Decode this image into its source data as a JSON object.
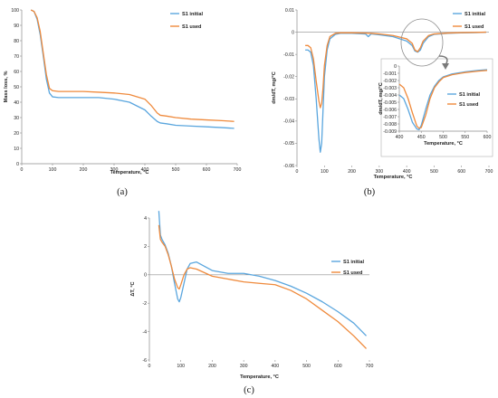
{
  "colors": {
    "initial": "#5aa6de",
    "used": "#ef8a3c",
    "axis": "#8c8c8c",
    "text": "#222222"
  },
  "panel_labels": [
    "(a)",
    "(b)",
    "(c)"
  ],
  "chart_data": [
    {
      "id": "a",
      "type": "line",
      "title": "",
      "xlabel": "Temperature, °C",
      "ylabel": "Mass loss, %",
      "xlim": [
        0,
        700
      ],
      "ylim": [
        0,
        100
      ],
      "xticks": [
        "0",
        "100",
        "200",
        "300",
        "400",
        "500",
        "600",
        "700"
      ],
      "yticks": [
        "0",
        "10",
        "20",
        "30",
        "40",
        "50",
        "60",
        "70",
        "80",
        "90",
        "100"
      ],
      "grid": false,
      "legend": "top-right",
      "series": [
        {
          "name": "S1 initial",
          "color": "#5aa6de",
          "x": [
            30,
            40,
            50,
            60,
            70,
            80,
            90,
            100,
            120,
            150,
            200,
            250,
            300,
            350,
            400,
            420,
            440,
            450,
            470,
            500,
            550,
            600,
            650,
            690
          ],
          "y": [
            100,
            99,
            94,
            84,
            70,
            55,
            46,
            43.5,
            43,
            43,
            43,
            43,
            42,
            40,
            35,
            31,
            27.5,
            26.5,
            26,
            25,
            24.5,
            24,
            23.5,
            23
          ]
        },
        {
          "name": "S1 used",
          "color": "#ef8a3c",
          "x": [
            30,
            40,
            50,
            60,
            70,
            80,
            90,
            100,
            120,
            150,
            200,
            250,
            300,
            350,
            400,
            420,
            440,
            450,
            470,
            500,
            550,
            600,
            650,
            690
          ],
          "y": [
            100,
            99,
            95,
            86,
            72,
            58,
            49,
            47.5,
            47,
            47,
            47,
            46.5,
            46,
            45,
            42,
            38,
            33,
            31.5,
            31,
            30,
            29,
            28.5,
            28,
            27.5
          ]
        }
      ]
    },
    {
      "id": "b",
      "type": "line",
      "title": "",
      "xlabel": "Temperature, °C",
      "ylabel": "dm/dT, mg/°C",
      "xlim": [
        0,
        700
      ],
      "ylim": [
        -0.06,
        0.01
      ],
      "xticks": [
        "0",
        "100",
        "200",
        "300",
        "400",
        "500",
        "600",
        "700"
      ],
      "yticks": [
        "0.01",
        "0",
        "-0.01",
        "-0.02",
        "-0.03",
        "-0.04",
        "-0.05",
        "-0.06"
      ],
      "grid": false,
      "legend": "top-right",
      "series": [
        {
          "name": "S1 initial",
          "color": "#5aa6de",
          "x": [
            30,
            40,
            50,
            60,
            70,
            80,
            85,
            90,
            95,
            100,
            110,
            120,
            140,
            160,
            200,
            250,
            260,
            270,
            300,
            350,
            400,
            420,
            430,
            440,
            450,
            460,
            480,
            500,
            550,
            600,
            650,
            690
          ],
          "y": [
            -0.008,
            -0.008,
            -0.009,
            -0.015,
            -0.03,
            -0.048,
            -0.054,
            -0.05,
            -0.035,
            -0.02,
            -0.008,
            -0.003,
            -0.001,
            -0.0005,
            -0.0005,
            -0.0008,
            -0.002,
            -0.0008,
            -0.0012,
            -0.002,
            -0.004,
            -0.006,
            -0.0085,
            -0.009,
            -0.008,
            -0.005,
            -0.002,
            -0.001,
            -0.0005,
            -0.0003,
            -0.0002,
            0
          ]
        },
        {
          "name": "S1 used",
          "color": "#ef8a3c",
          "x": [
            30,
            40,
            50,
            60,
            70,
            80,
            85,
            90,
            95,
            100,
            110,
            120,
            140,
            160,
            200,
            250,
            260,
            270,
            300,
            350,
            400,
            420,
            430,
            440,
            450,
            460,
            480,
            500,
            550,
            600,
            650,
            690
          ],
          "y": [
            -0.006,
            -0.006,
            -0.007,
            -0.012,
            -0.022,
            -0.031,
            -0.034,
            -0.032,
            -0.025,
            -0.015,
            -0.006,
            -0.002,
            -0.0005,
            -0.0003,
            -0.0003,
            -0.0004,
            -0.0005,
            -0.0005,
            -0.0008,
            -0.0015,
            -0.003,
            -0.005,
            -0.008,
            -0.0088,
            -0.007,
            -0.004,
            -0.0015,
            -0.0008,
            -0.0004,
            -0.0002,
            -0.0001,
            0
          ]
        }
      ]
    },
    {
      "id": "b-inset",
      "type": "line",
      "title": "",
      "xlabel": "Temperature, °C",
      "ylabel": "dm/dT, mg/°C",
      "xlim": [
        400,
        600
      ],
      "ylim": [
        -0.009,
        0
      ],
      "xticks": [
        "400",
        "450",
        "500",
        "550",
        "600"
      ],
      "yticks": [
        "0",
        "-0.001",
        "-0.002",
        "-0.003",
        "-0.004",
        "-0.005",
        "-0.006",
        "-0.007",
        "-0.008",
        "-0.009"
      ],
      "grid": false,
      "legend": "right",
      "series": [
        {
          "name": "S1 initial",
          "color": "#5aa6de",
          "x": [
            400,
            410,
            420,
            430,
            440,
            445,
            450,
            460,
            470,
            480,
            490,
            500,
            520,
            550,
            580,
            600
          ],
          "y": [
            -0.004,
            -0.0045,
            -0.006,
            -0.0078,
            -0.0087,
            -0.0088,
            -0.0082,
            -0.006,
            -0.004,
            -0.0028,
            -0.002,
            -0.0015,
            -0.0011,
            -0.0008,
            -0.0006,
            -0.0005
          ]
        },
        {
          "name": "S1 used",
          "color": "#ef8a3c",
          "x": [
            400,
            410,
            420,
            430,
            440,
            445,
            450,
            460,
            470,
            480,
            490,
            500,
            520,
            550,
            580,
            600
          ],
          "y": [
            -0.0025,
            -0.003,
            -0.0045,
            -0.0065,
            -0.0083,
            -0.0086,
            -0.0085,
            -0.0068,
            -0.0045,
            -0.003,
            -0.0022,
            -0.0016,
            -0.0012,
            -0.0009,
            -0.0007,
            -0.0006
          ]
        }
      ]
    },
    {
      "id": "c",
      "type": "line",
      "title": "",
      "xlabel": "Temperature, °C",
      "ylabel": "ΔT, °C",
      "xlim": [
        0,
        700
      ],
      "ylim": [
        -6,
        4
      ],
      "xticks": [
        "0",
        "100",
        "200",
        "300",
        "400",
        "500",
        "600",
        "700"
      ],
      "yticks": [
        "4",
        "2",
        "0",
        "-2",
        "-4",
        "-6"
      ],
      "grid": false,
      "legend": "top-right",
      "series": [
        {
          "name": "S1 initial",
          "color": "#5aa6de",
          "x": [
            30,
            35,
            40,
            50,
            60,
            70,
            80,
            90,
            95,
            100,
            110,
            120,
            130,
            150,
            200,
            250,
            300,
            350,
            400,
            450,
            500,
            550,
            600,
            650,
            690
          ],
          "y": [
            4.5,
            2.8,
            2.5,
            2.1,
            1.5,
            0.6,
            -0.6,
            -1.7,
            -1.9,
            -1.6,
            -0.6,
            0.4,
            0.8,
            0.9,
            0.3,
            0.1,
            0.1,
            -0.1,
            -0.4,
            -0.8,
            -1.3,
            -1.9,
            -2.6,
            -3.4,
            -4.3
          ]
        },
        {
          "name": "S1 used",
          "color": "#ef8a3c",
          "x": [
            30,
            35,
            40,
            50,
            60,
            70,
            80,
            90,
            95,
            100,
            110,
            120,
            130,
            150,
            200,
            250,
            300,
            350,
            400,
            450,
            500,
            550,
            600,
            650,
            690
          ],
          "y": [
            3.5,
            2.5,
            2.3,
            2.0,
            1.4,
            0.6,
            -0.3,
            -0.9,
            -1.0,
            -0.7,
            0.0,
            0.4,
            0.5,
            0.4,
            -0.1,
            -0.3,
            -0.5,
            -0.6,
            -0.7,
            -1.1,
            -1.7,
            -2.5,
            -3.3,
            -4.3,
            -5.2
          ]
        }
      ]
    }
  ]
}
